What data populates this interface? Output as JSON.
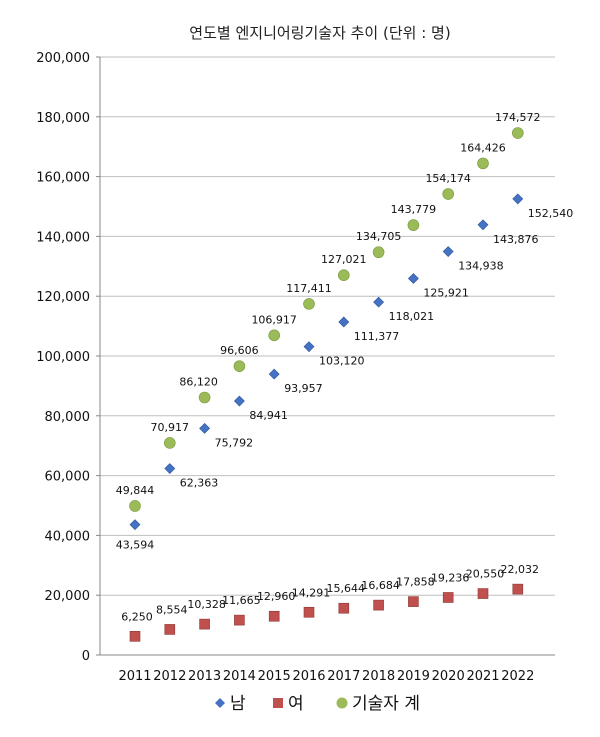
{
  "chart_data": {
    "type": "scatter",
    "title": "연도별 엔지니어링기술자 추이 (단위 : 명)",
    "xlabel": "",
    "ylabel": "",
    "categories": [
      "2011",
      "2012",
      "2013",
      "2014",
      "2015",
      "2016",
      "2017",
      "2018",
      "2019",
      "2020",
      "2021",
      "2022"
    ],
    "ylim": [
      0,
      200000
    ],
    "yticks": [
      0,
      20000,
      40000,
      60000,
      80000,
      100000,
      120000,
      140000,
      160000,
      180000,
      200000
    ],
    "ytick_labels": [
      "0",
      "20,000",
      "40,000",
      "60,000",
      "80,000",
      "100,000",
      "120,000",
      "140,000",
      "160,000",
      "180,000",
      "200,000"
    ],
    "grid": "horizontal",
    "legend_position": "bottom",
    "series": [
      {
        "name": "남",
        "marker": "diamond",
        "color": "#4472C4",
        "values": [
          43594,
          62363,
          75792,
          84941,
          93957,
          103120,
          111377,
          118021,
          125921,
          134938,
          143876,
          152540
        ],
        "labels": [
          "43,594",
          "62,363",
          "75,792",
          "84,941",
          "93,957",
          "103,120",
          "111,377",
          "118,021",
          "125,921",
          "134,938",
          "143,876",
          "152,540"
        ]
      },
      {
        "name": "여",
        "marker": "square",
        "color": "#C0504D",
        "values": [
          6250,
          8554,
          10328,
          11665,
          12960,
          14291,
          15644,
          16684,
          17858,
          19236,
          20550,
          22032
        ],
        "labels": [
          "6,250",
          "8,554",
          "10,328",
          "11,665",
          "12,960",
          "14,291",
          "15,644",
          "16,684",
          "17,858",
          "19,236",
          "20,550",
          "22,032"
        ]
      },
      {
        "name": "기술자 계",
        "marker": "circle",
        "color": "#9BBB59",
        "values": [
          49844,
          70917,
          86120,
          96606,
          106917,
          117411,
          127021,
          134705,
          143779,
          154174,
          164426,
          174572
        ],
        "labels": [
          "49,844",
          "70,917",
          "86,120",
          "96,606",
          "106,917",
          "117,411",
          "127,021",
          "134,705",
          "143,779",
          "154,174",
          "164,426",
          "174,572"
        ]
      }
    ]
  }
}
